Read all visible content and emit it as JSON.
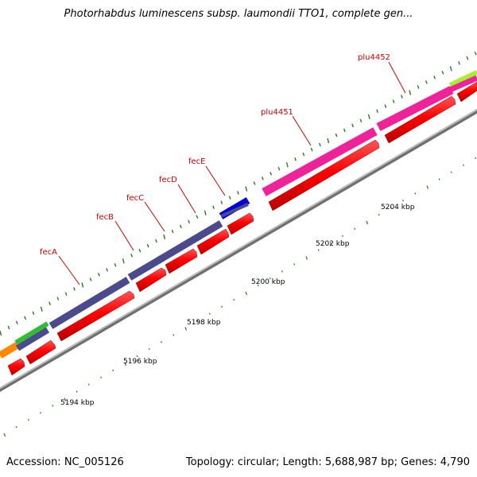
{
  "title": "Photorhabdus luminescens subsp. laumondii TTO1, complete gen...",
  "footer": {
    "accession": "Accession: NC_005126",
    "summary": "Topology: circular; Length: 5,688,987 bp; Genes: 4,790"
  },
  "scale_labels": [
    "5194 kbp",
    "5196 kbp",
    "5198 kbp",
    "5200 kbp",
    "5202 kbp",
    "5204 kbp"
  ],
  "gene_labels": [
    "fecA",
    "fecB",
    "fecC",
    "fecD",
    "fecE",
    "plu4451",
    "plu4452"
  ],
  "colors": {
    "backbone": "#9a9a9a",
    "cds_red": "#ff0000",
    "cds_red_dark": "#bb0000",
    "cog_purple": "#4a4a8c",
    "cog_blue": "#0000dd",
    "cog_pink": "#ee2299",
    "cog_green": "#33bb33",
    "cog_lime": "#aaee33",
    "cog_orange": "#ff8800",
    "label_red": "#cc0000",
    "tick_green": "#2a7a2a"
  }
}
